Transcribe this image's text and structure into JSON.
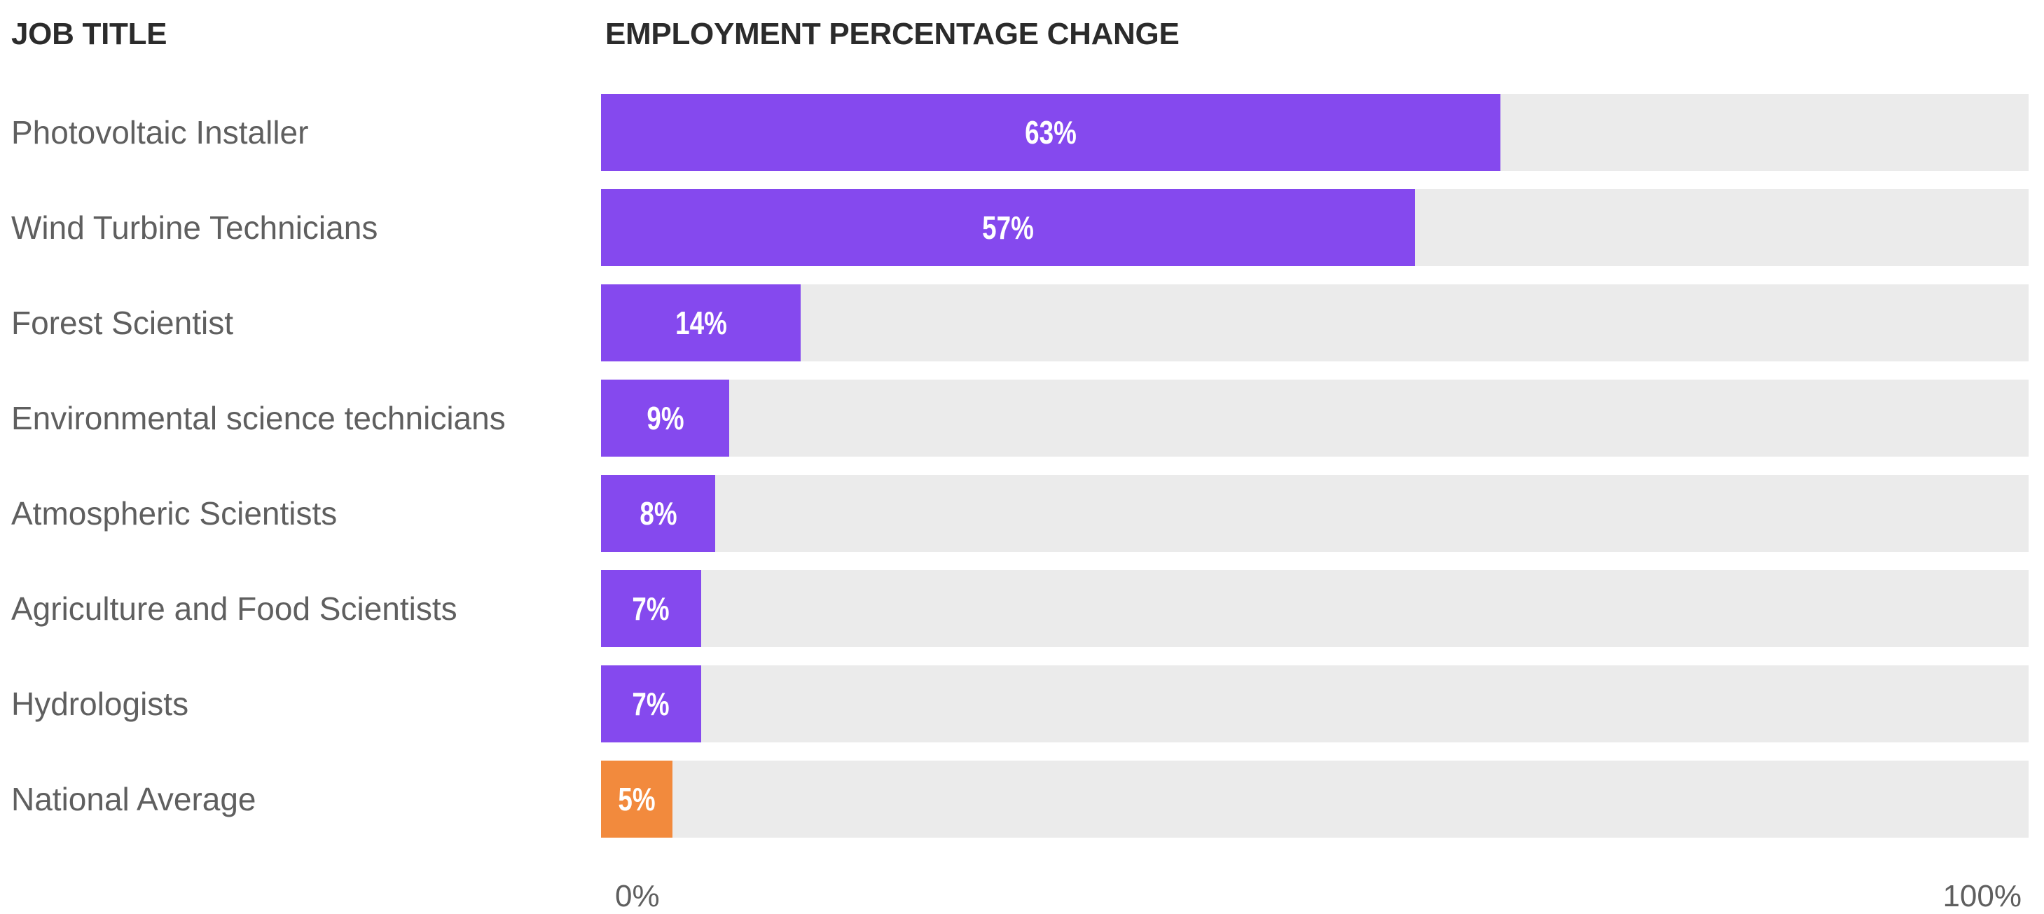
{
  "chart_data": {
    "type": "bar",
    "orientation": "horizontal",
    "column_headers": {
      "label": "JOB TITLE",
      "value": "EMPLOYMENT PERCENTAGE CHANGE"
    },
    "categories": [
      "Photovoltaic Installer",
      "Wind Turbine Technicians",
      "Forest Scientist",
      "Environmental science technicians",
      "Atmospheric Scientists",
      "Agriculture and Food Scientists",
      "Hydrologists",
      "National Average"
    ],
    "values": [
      63,
      57,
      14,
      9,
      8,
      7,
      7,
      5
    ],
    "value_labels": [
      "63%",
      "57%",
      "14%",
      "9%",
      "8%",
      "7%",
      "7%",
      "5%"
    ],
    "xlim": [
      0,
      100
    ],
    "x_tick_labels": [
      "0%",
      "100%"
    ],
    "grid": false,
    "legend": "none",
    "colors": {
      "bar": "#8549ee",
      "highlight": "#f28a3d",
      "track": "#ebebeb",
      "value_text": "#ffffff",
      "header_text": "#2b2b2b",
      "label_text": "#5f5f5f"
    },
    "highlight_category": "National Average"
  }
}
